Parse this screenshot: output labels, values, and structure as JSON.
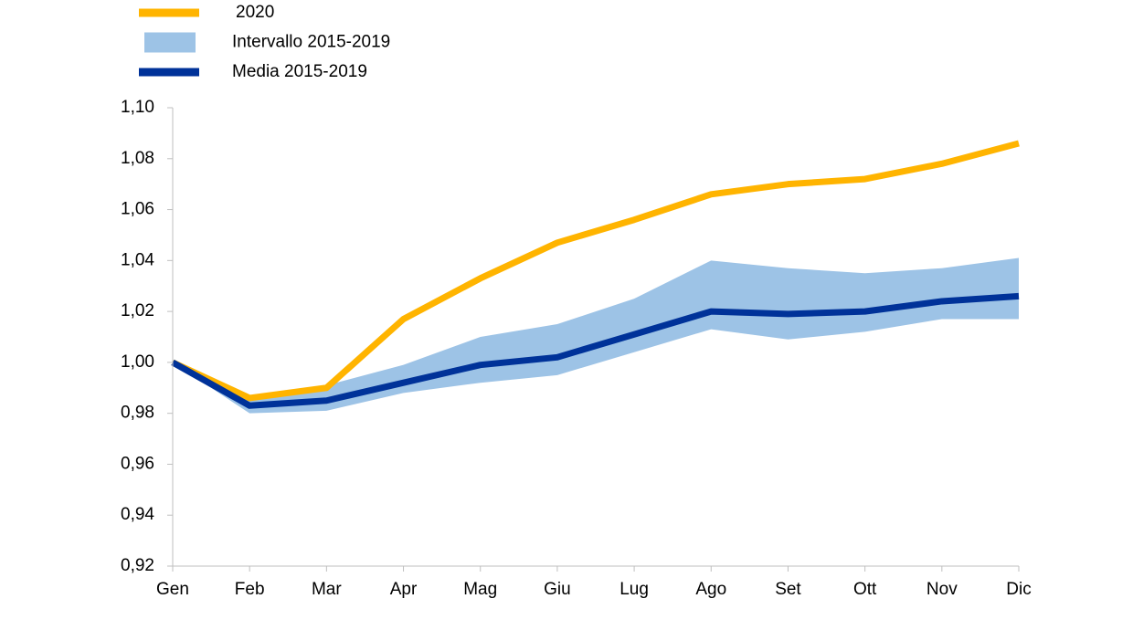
{
  "chart_data": {
    "type": "line",
    "categories": [
      "Gen",
      "Feb",
      "Mar",
      "Apr",
      "Mag",
      "Giu",
      "Lug",
      "Ago",
      "Set",
      "Ott",
      "Nov",
      "Dic"
    ],
    "series": [
      {
        "name": "2020",
        "color": "#ffb400",
        "values": [
          1.0,
          0.986,
          0.99,
          1.017,
          1.033,
          1.047,
          1.056,
          1.066,
          1.07,
          1.072,
          1.078,
          1.086
        ]
      },
      {
        "name": "Intervallo 2015-2019",
        "color": "#9dc3e6",
        "type": "band",
        "lower": [
          1.0,
          0.98,
          0.981,
          0.988,
          0.992,
          0.995,
          1.004,
          1.013,
          1.009,
          1.012,
          1.017,
          1.017
        ],
        "upper": [
          1.0,
          0.987,
          0.991,
          0.999,
          1.01,
          1.015,
          1.025,
          1.04,
          1.037,
          1.035,
          1.037,
          1.041
        ]
      },
      {
        "name": "Media 2015-2019",
        "color": "#003299",
        "values": [
          1.0,
          0.983,
          0.985,
          0.992,
          0.999,
          1.002,
          1.011,
          1.02,
          1.019,
          1.02,
          1.024,
          1.026
        ]
      }
    ],
    "ylim": [
      0.92,
      1.1
    ],
    "yticks": [
      {
        "value": 0.92,
        "label": "0,92"
      },
      {
        "value": 0.94,
        "label": "0,94"
      },
      {
        "value": 0.96,
        "label": "0,96"
      },
      {
        "value": 0.98,
        "label": "0,98"
      },
      {
        "value": 1.0,
        "label": "1,00"
      },
      {
        "value": 1.02,
        "label": "1,02"
      },
      {
        "value": 1.04,
        "label": "1,04"
      },
      {
        "value": 1.06,
        "label": "1,06"
      },
      {
        "value": 1.08,
        "label": "1,08"
      },
      {
        "value": 1.1,
        "label": "1,10"
      }
    ],
    "grid": false
  }
}
